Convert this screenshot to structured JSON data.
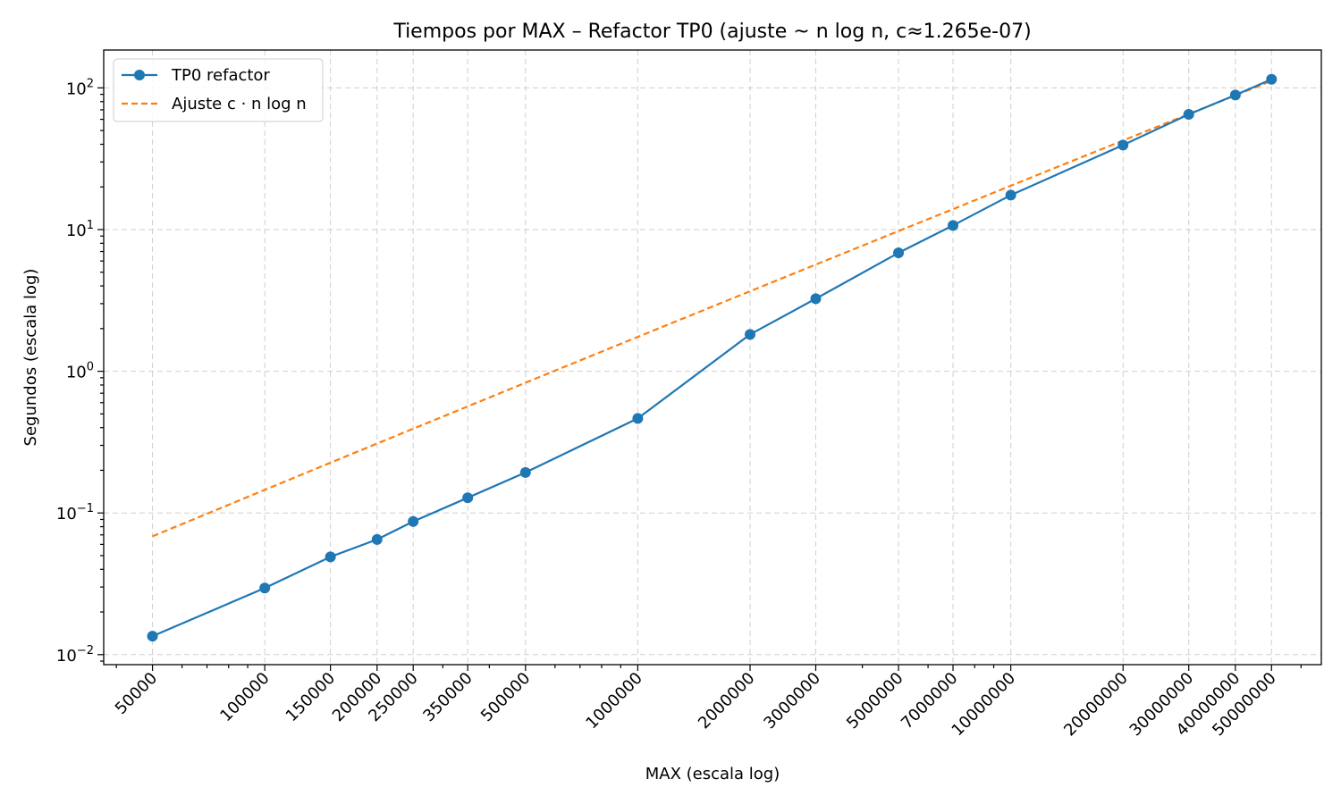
{
  "chart_data": {
    "type": "line",
    "title": "Tiempos por MAX – Refactor TP0 (ajuste ~ n log n, c≈1.265e-07)",
    "xlabel": "MAX (escala log)",
    "ylabel": "Segundos (escala log)",
    "xscale": "log",
    "yscale": "log",
    "xlim": [
      37000,
      68000000
    ],
    "ylim": [
      0.0085,
      185
    ],
    "grid": true,
    "legend_position": "top-left",
    "x": [
      50000,
      100000,
      150000,
      200000,
      250000,
      350000,
      500000,
      1000000,
      2000000,
      3000000,
      5000000,
      7000000,
      10000000,
      20000000,
      30000000,
      40000000,
      50000000
    ],
    "x_tick_labels": [
      "50000",
      "100000",
      "150000",
      "200000",
      "250000",
      "350000",
      "500000",
      "1000000",
      "2000000",
      "3000000",
      "5000000",
      "7000000",
      "10000000",
      "20000000",
      "30000000",
      "40000000",
      "50000000"
    ],
    "y_ticks": [
      {
        "value": 0.01,
        "base": "10",
        "exp": "−2"
      },
      {
        "value": 0.1,
        "base": "10",
        "exp": "−1"
      },
      {
        "value": 1,
        "base": "10",
        "exp": "0"
      },
      {
        "value": 10,
        "base": "10",
        "exp": "1"
      },
      {
        "value": 100,
        "base": "10",
        "exp": "2"
      }
    ],
    "series": [
      {
        "name": "TP0 refactor",
        "color": "#1f77b4",
        "style": "solid",
        "marker": "circle",
        "values": [
          0.0135,
          0.0295,
          0.049,
          0.065,
          0.087,
          0.128,
          0.193,
          0.465,
          1.82,
          3.25,
          6.85,
          10.7,
          17.5,
          39.5,
          65.0,
          89.0,
          115.0
        ]
      },
      {
        "name": "Ajuste c · n log n",
        "color": "#ff7f0e",
        "style": "dashed",
        "marker": "none",
        "values": [
          0.0684,
          0.1456,
          0.2262,
          0.3089,
          0.3931,
          0.5649,
          0.83,
          1.7477,
          3.6707,
          5.6589,
          9.7588,
          13.9352,
          20.3908,
          42.5341,
          65.3561,
          88.5422,
          112.1158
        ]
      }
    ]
  }
}
